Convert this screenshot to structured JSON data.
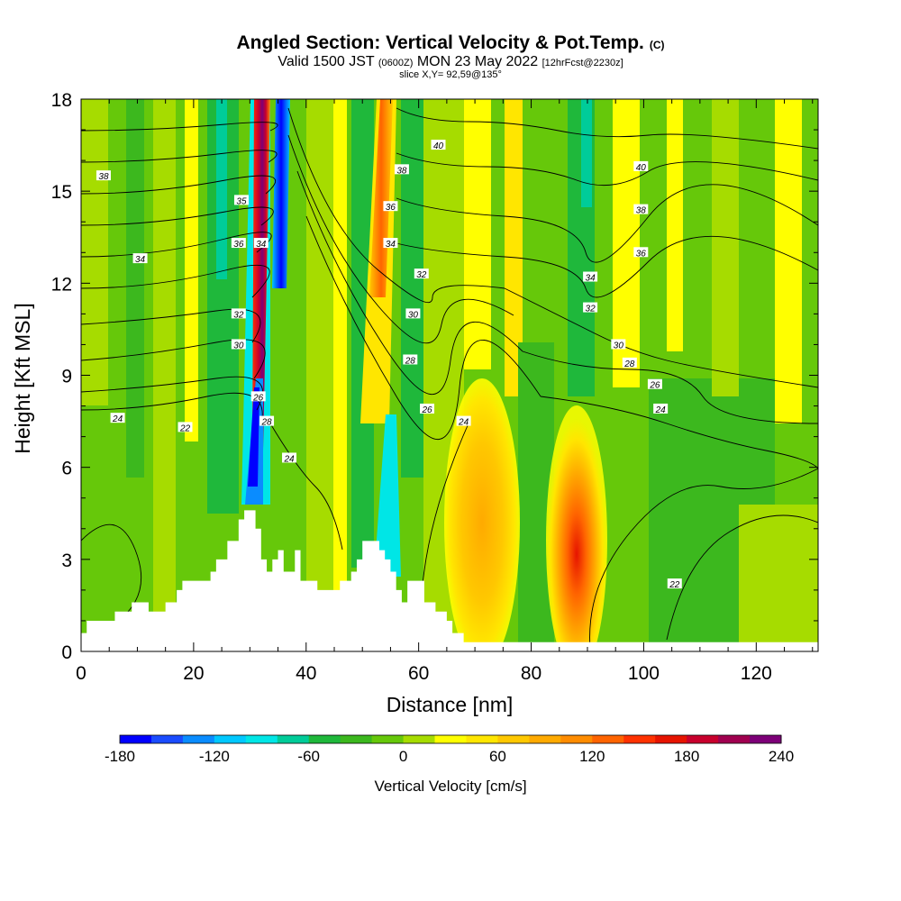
{
  "title": {
    "main": "Angled Section: Vertical Velocity & Pot.Temp.",
    "copyright": "(C)",
    "valid_prefix": "Valid 1500 JST",
    "valid_utc": "(0600Z)",
    "valid_date": "MON 23 May 2022",
    "forecast": "[12hrFcst@2230z]",
    "slice": "slice X,Y= 92,59@135°"
  },
  "chart_data": {
    "type": "heatmap",
    "xlabel": "Distance [nm]",
    "ylabel": "Height [Kft MSL]",
    "xlim": [
      0,
      131
    ],
    "ylim": [
      0,
      18
    ],
    "xticks": [
      0,
      20,
      40,
      60,
      80,
      100,
      120
    ],
    "yticks": [
      0,
      3,
      6,
      9,
      12,
      15,
      18
    ],
    "colorbar": {
      "title": "Vertical Velocity [cm/s]",
      "range": [
        -180,
        240
      ],
      "step": 20,
      "tick_values": [
        -180,
        -120,
        -60,
        0,
        60,
        120,
        180,
        240
      ],
      "tick_labels": [
        "-180",
        "-120",
        "-60",
        "0",
        "60",
        "120",
        "180",
        "240"
      ],
      "colors": [
        "#0000ff",
        "#1a4cff",
        "#0a8cff",
        "#00c8ff",
        "#00e6e6",
        "#00cc99",
        "#1fb83b",
        "#3cb81e",
        "#66c80a",
        "#a6dc00",
        "#ffff00",
        "#ffe600",
        "#ffc800",
        "#ffaa00",
        "#ff8c00",
        "#ff6400",
        "#ff3200",
        "#e61400",
        "#c8002d",
        "#a00050",
        "#7d0078"
      ]
    },
    "terrain": [
      [
        0,
        0.6
      ],
      [
        1,
        1.0
      ],
      [
        6,
        1.3
      ],
      [
        9,
        1.6
      ],
      [
        12,
        1.3
      ],
      [
        15,
        1.6
      ],
      [
        17,
        2.0
      ],
      [
        18,
        2.3
      ],
      [
        23,
        2.6
      ],
      [
        24,
        3.0
      ],
      [
        26,
        3.6
      ],
      [
        28,
        4.3
      ],
      [
        29,
        4.6
      ],
      [
        30,
        4.6
      ],
      [
        31,
        4.0
      ],
      [
        32,
        3.0
      ],
      [
        33,
        2.6
      ],
      [
        34,
        3.0
      ],
      [
        35,
        3.3
      ],
      [
        36,
        2.6
      ],
      [
        37,
        2.6
      ],
      [
        38,
        3.3
      ],
      [
        39,
        2.3
      ],
      [
        41,
        2.3
      ],
      [
        42,
        2.0
      ],
      [
        46,
        2.3
      ],
      [
        47,
        2.3
      ],
      [
        48,
        2.6
      ],
      [
        49,
        3.0
      ],
      [
        50,
        3.6
      ],
      [
        53,
        3.3
      ],
      [
        54,
        3.0
      ],
      [
        55,
        2.6
      ],
      [
        56,
        2.0
      ],
      [
        57,
        1.6
      ],
      [
        58,
        2.3
      ],
      [
        60,
        2.3
      ],
      [
        61,
        1.6
      ],
      [
        63,
        1.3
      ],
      [
        65,
        1.0
      ],
      [
        66,
        0.6
      ],
      [
        68,
        0.3
      ],
      [
        131,
        0.3
      ]
    ],
    "theta_contours": [
      {
        "label": "22",
        "x": 18.5,
        "y": 7.3
      },
      {
        "label": "24",
        "x": 6.5,
        "y": 7.6
      },
      {
        "label": "34",
        "x": 10.5,
        "y": 12.8
      },
      {
        "label": "38",
        "x": 4.0,
        "y": 15.5
      },
      {
        "label": "35",
        "x": 28.5,
        "y": 14.7
      },
      {
        "label": "36",
        "x": 28.0,
        "y": 13.3
      },
      {
        "label": "34",
        "x": 32.0,
        "y": 13.3
      },
      {
        "label": "32",
        "x": 28.0,
        "y": 11.0
      },
      {
        "label": "30",
        "x": 28.0,
        "y": 10.0
      },
      {
        "label": "26",
        "x": 31.5,
        "y": 8.3
      },
      {
        "label": "28",
        "x": 33.0,
        "y": 7.5
      },
      {
        "label": "24",
        "x": 37.0,
        "y": 6.3
      },
      {
        "label": "40",
        "x": 63.5,
        "y": 16.5
      },
      {
        "label": "38",
        "x": 57.0,
        "y": 15.7
      },
      {
        "label": "36",
        "x": 55.0,
        "y": 14.5
      },
      {
        "label": "34",
        "x": 55.0,
        "y": 13.3
      },
      {
        "label": "32",
        "x": 60.5,
        "y": 12.3
      },
      {
        "label": "30",
        "x": 59.0,
        "y": 11.0
      },
      {
        "label": "28",
        "x": 58.5,
        "y": 9.5
      },
      {
        "label": "26",
        "x": 61.5,
        "y": 7.9
      },
      {
        "label": "24",
        "x": 68.0,
        "y": 7.5
      },
      {
        "label": "40",
        "x": 99.5,
        "y": 15.8
      },
      {
        "label": "38",
        "x": 99.5,
        "y": 14.4
      },
      {
        "label": "36",
        "x": 99.5,
        "y": 13.0
      },
      {
        "label": "34",
        "x": 90.5,
        "y": 12.2
      },
      {
        "label": "32",
        "x": 90.5,
        "y": 11.2
      },
      {
        "label": "30",
        "x": 95.5,
        "y": 10.0
      },
      {
        "label": "28",
        "x": 97.5,
        "y": 9.4
      },
      {
        "label": "26",
        "x": 102.0,
        "y": 8.7
      },
      {
        "label": "24",
        "x": 103.0,
        "y": 7.9
      },
      {
        "label": "22",
        "x": 105.5,
        "y": 2.2
      }
    ]
  }
}
